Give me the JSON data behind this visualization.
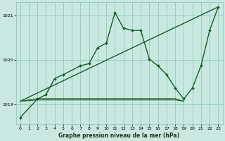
{
  "bg_color": "#c8e8e0",
  "grid_color": "#88c4b8",
  "line_color": "#1a5c2a",
  "title": "Graphe pression niveau de la mer (hPa)",
  "xlim": [
    -0.5,
    23.5
  ],
  "ylim": [
    1018.55,
    1021.3
  ],
  "yticks": [
    1019,
    1020,
    1021
  ],
  "xticks": [
    0,
    1,
    2,
    3,
    4,
    5,
    6,
    7,
    8,
    9,
    10,
    11,
    12,
    13,
    14,
    15,
    16,
    17,
    18,
    19,
    20,
    21,
    22,
    23
  ],
  "trend_x": [
    0,
    23
  ],
  "trend_y": [
    1019.07,
    1021.2
  ],
  "main_x": [
    0,
    2,
    3,
    4,
    5,
    7,
    8,
    9,
    10,
    11,
    12,
    13,
    14,
    15,
    16,
    17,
    18,
    19,
    20,
    21,
    22,
    23
  ],
  "main_y": [
    1018.7,
    1019.12,
    1019.22,
    1019.58,
    1019.67,
    1019.87,
    1019.92,
    1020.28,
    1020.38,
    1021.07,
    1020.72,
    1020.67,
    1020.67,
    1020.02,
    1019.87,
    1019.67,
    1019.37,
    1019.12,
    1019.37,
    1019.87,
    1020.67,
    1021.2
  ],
  "flat1_x": [
    0,
    2,
    3,
    4,
    5,
    6,
    7,
    8,
    9,
    10,
    11,
    12,
    13,
    14,
    15,
    16,
    17,
    18,
    19
  ],
  "flat1_y": [
    1019.07,
    1019.1,
    1019.1,
    1019.1,
    1019.1,
    1019.1,
    1019.1,
    1019.1,
    1019.1,
    1019.1,
    1019.1,
    1019.1,
    1019.1,
    1019.1,
    1019.1,
    1019.1,
    1019.1,
    1019.1,
    1019.07
  ],
  "flat2_x": [
    0,
    2,
    3,
    4,
    5,
    6,
    7,
    8,
    9,
    10,
    11,
    12,
    13,
    14,
    15,
    16,
    17,
    18,
    19
  ],
  "flat2_y": [
    1019.07,
    1019.13,
    1019.13,
    1019.13,
    1019.13,
    1019.13,
    1019.13,
    1019.13,
    1019.13,
    1019.13,
    1019.13,
    1019.13,
    1019.13,
    1019.13,
    1019.13,
    1019.13,
    1019.13,
    1019.13,
    1019.07
  ]
}
